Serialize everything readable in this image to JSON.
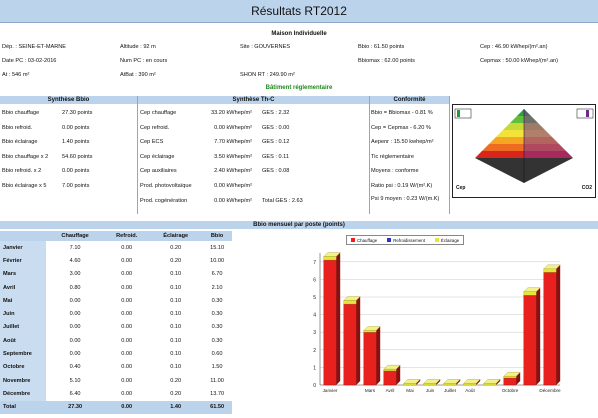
{
  "title": "Résultats RT2012",
  "header": {
    "section_title": "Maison Individuelle",
    "fields": [
      {
        "label": "Dép. : SEINE-ET-MARNE"
      },
      {
        "label": "Altitude : 92 m"
      },
      {
        "label": "Site : GOUVERNES"
      },
      {
        "label": "Bbio : 61.50 points"
      },
      {
        "label": "Cep : 46.90 kWhep/(m².an)"
      },
      {
        "label": "Date PC : 03-02-2016"
      },
      {
        "label": "Num PC : en cours"
      },
      {
        "label": "Bbiomax : 62.00 points"
      },
      {
        "label": "Cepmax : 50.00 kWhep/(m².an)"
      },
      {
        "label": "At : 546 m²"
      },
      {
        "label": "AtBat : 390 m²"
      },
      {
        "label": "SHON RT : 249.90 m²"
      }
    ]
  },
  "batiment_title": "Bâtiment réglementaire",
  "synthese_bbio": {
    "title": "Synthèse Bbio",
    "rows": [
      {
        "label": "Bbio chauffage",
        "value": "27.30 points"
      },
      {
        "label": "Bbio refroid.",
        "value": "0.00 points"
      },
      {
        "label": "Bbio éclairage",
        "value": "1.40 points"
      },
      {
        "label": "Bbio chauffage x 2",
        "value": "54.60 points"
      },
      {
        "label": "Bbio refroid. x 2",
        "value": "0.00 points"
      },
      {
        "label": "Bbio éclairage x 5",
        "value": "7.00 points"
      }
    ]
  },
  "synthese_thc": {
    "title": "Synthèse Th-C",
    "rows": [
      {
        "label": "Cep chauffage",
        "value": "33.20 kWhep/m²",
        "ges": "GES : 2.32"
      },
      {
        "label": "Cep refroid.",
        "value": "0.00 kWhep/m²",
        "ges": "GES : 0.00"
      },
      {
        "label": "Cep ECS",
        "value": "7.70 kWhep/m²",
        "ges": "GES : 0.12"
      },
      {
        "label": "Cep éclairage",
        "value": "3.50 kWhep/m²",
        "ges": "GES : 0.11"
      },
      {
        "label": "Cep auxiliaires",
        "value": "2.40 kWhep/m²",
        "ges": "GES : 0.08"
      },
      {
        "label": "Prod. photovoltaïque",
        "value": "0.00 kWhep/m²",
        "ges": ""
      },
      {
        "label": "Prod. cogénération",
        "value": "0.00 kWhep/m²",
        "ges": "Total GES : 2.63"
      }
    ]
  },
  "conformite": {
    "title": "Conformité",
    "rows": [
      "Bbio = Bbiomax - 0.81 %",
      "Cep = Cepmax - 6.20 %",
      "Aepenr : 15.50 kwhep/m²",
      "Tic réglementaire",
      "Moyens : conforme",
      "Ratio psi : 0.19 W/(m².K)",
      "Psi 9 moyen : 0.23 W/(m.K)"
    ]
  },
  "label_image": {
    "left_label": "Cep",
    "right_label": "CO2"
  },
  "monthly": {
    "title": "Bbio mensuel par poste (points)",
    "columns": [
      "Chauffage",
      "Refroid.",
      "Éclairage",
      "Bbio"
    ],
    "rows": [
      {
        "month": "Janvier",
        "values": [
          "7.10",
          "0.00",
          "0.20",
          "15.10"
        ]
      },
      {
        "month": "Février",
        "values": [
          "4.60",
          "0.00",
          "0.20",
          "10.00"
        ]
      },
      {
        "month": "Mars",
        "values": [
          "3.00",
          "0.00",
          "0.10",
          "6.70"
        ]
      },
      {
        "month": "Avril",
        "values": [
          "0.80",
          "0.00",
          "0.10",
          "2.10"
        ]
      },
      {
        "month": "Mai",
        "values": [
          "0.00",
          "0.00",
          "0.10",
          "0.30"
        ]
      },
      {
        "month": "Juin",
        "values": [
          "0.00",
          "0.00",
          "0.10",
          "0.30"
        ]
      },
      {
        "month": "Juillet",
        "values": [
          "0.00",
          "0.00",
          "0.10",
          "0.30"
        ]
      },
      {
        "month": "Août",
        "values": [
          "0.00",
          "0.00",
          "0.10",
          "0.30"
        ]
      },
      {
        "month": "Septembre",
        "values": [
          "0.00",
          "0.00",
          "0.10",
          "0.60"
        ]
      },
      {
        "month": "Octobre",
        "values": [
          "0.40",
          "0.00",
          "0.10",
          "1.50"
        ]
      },
      {
        "month": "Novembre",
        "values": [
          "5.10",
          "0.00",
          "0.20",
          "11.00"
        ]
      },
      {
        "month": "Décembre",
        "values": [
          "6.40",
          "0.00",
          "0.20",
          "13.70"
        ]
      }
    ],
    "total": {
      "month": "Total",
      "values": [
        "27.30",
        "0.00",
        "1.40",
        "61.50"
      ]
    }
  },
  "chart_data": {
    "type": "bar",
    "categories": [
      "Janvier",
      "Février",
      "Mars",
      "Avril",
      "Mai",
      "Juin",
      "Juillet",
      "Août",
      "Septembre",
      "Octobre",
      "Novembre",
      "Décembre"
    ],
    "xticks": [
      "Janvier",
      "",
      "Mars",
      "Avril",
      "Mai",
      "Juin",
      "Juillet",
      "Août",
      "",
      "Octobre",
      "",
      "Décembre"
    ],
    "series": [
      {
        "name": "Chauffage",
        "color": "#e8211f",
        "values": [
          7.1,
          4.6,
          3.0,
          0.8,
          0.0,
          0.0,
          0.0,
          0.0,
          0.0,
          0.4,
          5.1,
          6.4
        ]
      },
      {
        "name": "Refroidissement",
        "color": "#2b35c8",
        "values": [
          0,
          0,
          0,
          0,
          0,
          0,
          0,
          0,
          0,
          0,
          0,
          0
        ]
      },
      {
        "name": "Éclairage",
        "color": "#e6e63a",
        "values": [
          0.2,
          0.2,
          0.1,
          0.1,
          0.1,
          0.1,
          0.1,
          0.1,
          0.1,
          0.1,
          0.2,
          0.2
        ]
      }
    ],
    "yticks": [
      0,
      1,
      2,
      3,
      4,
      5,
      6,
      7
    ],
    "ylim": [
      0,
      7.5
    ],
    "grid": true,
    "legend": "top"
  }
}
